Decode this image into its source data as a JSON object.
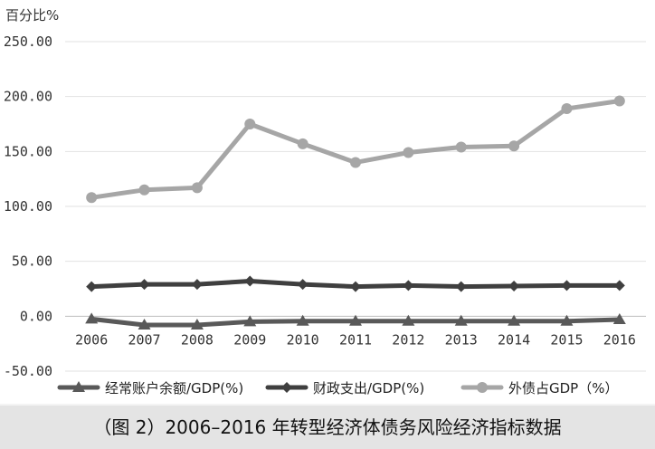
{
  "caption": "（图 2）2006–2016 年转型经济体债务风险经济指标数据",
  "chart_data": {
    "type": "line",
    "unit_label": "百分比%",
    "categories": [
      "2006",
      "2007",
      "2008",
      "2009",
      "2010",
      "2011",
      "2012",
      "2013",
      "2014",
      "2015",
      "2016"
    ],
    "ylim": [
      -50,
      250
    ],
    "yticks": [
      250,
      200,
      150,
      100,
      50,
      0,
      -50
    ],
    "ytick_labels": [
      "250.00",
      "200.00",
      "150.00",
      "100.00",
      "50.00",
      "0.00",
      "-50.00"
    ],
    "grid": "horizontal",
    "legend_position": "bottom",
    "series": [
      {
        "name": "经常账户余额/GDP(%)",
        "marker": "triangle",
        "color": "#595959",
        "values": [
          -2.5,
          -8,
          -8,
          -5,
          -4.5,
          -4.5,
          -4.5,
          -4.5,
          -4.5,
          -4.5,
          -3
        ]
      },
      {
        "name": "财政支出/GDP(%)",
        "marker": "diamond",
        "color": "#3f3f3f",
        "values": [
          27,
          29,
          29,
          32,
          29,
          27,
          28,
          27,
          27.5,
          28,
          28
        ]
      },
      {
        "name": "外债占GDP（%）",
        "marker": "circle",
        "color": "#a6a6a6",
        "values": [
          108,
          115,
          117,
          175,
          157,
          140,
          149,
          154,
          155,
          189,
          196
        ]
      }
    ]
  }
}
